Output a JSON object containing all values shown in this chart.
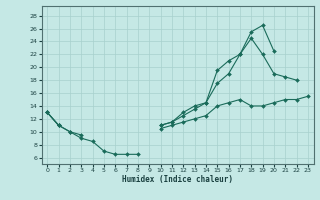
{
  "xlabel": "Humidex (Indice chaleur)",
  "bg_color": "#c5e8e5",
  "grid_color": "#a8d0ce",
  "line_color": "#1a6b5a",
  "xlim": [
    -0.5,
    23.5
  ],
  "ylim": [
    5,
    29.5
  ],
  "xticks": [
    0,
    1,
    2,
    3,
    4,
    5,
    6,
    7,
    8,
    9,
    10,
    11,
    12,
    13,
    14,
    15,
    16,
    17,
    18,
    19,
    20,
    21,
    22,
    23
  ],
  "yticks": [
    6,
    8,
    10,
    12,
    14,
    16,
    18,
    20,
    22,
    24,
    26,
    28
  ],
  "line1_y": [
    13,
    11,
    10,
    9,
    8.5,
    7,
    6.5,
    6.5,
    6.5,
    null,
    null,
    null,
    null,
    null,
    null,
    null,
    null,
    null,
    null,
    null,
    null,
    null,
    null,
    null
  ],
  "line2_y": [
    13,
    11,
    10,
    9.5,
    null,
    null,
    null,
    null,
    null,
    null,
    11,
    11.5,
    13,
    14,
    14.5,
    19.5,
    21,
    22,
    25.5,
    26.5,
    22.5,
    null,
    null,
    null
  ],
  "line3_y": [
    null,
    null,
    null,
    null,
    null,
    null,
    null,
    null,
    null,
    null,
    10.5,
    11,
    11.5,
    12,
    12.5,
    14,
    14.5,
    15,
    14,
    14,
    14.5,
    15,
    15,
    15.5
  ],
  "line4_y": [
    13,
    11,
    null,
    null,
    null,
    null,
    null,
    null,
    null,
    null,
    11,
    11.5,
    12.5,
    13.5,
    14.5,
    17.5,
    19,
    22,
    24.5,
    22,
    19,
    18.5,
    18,
    null
  ]
}
